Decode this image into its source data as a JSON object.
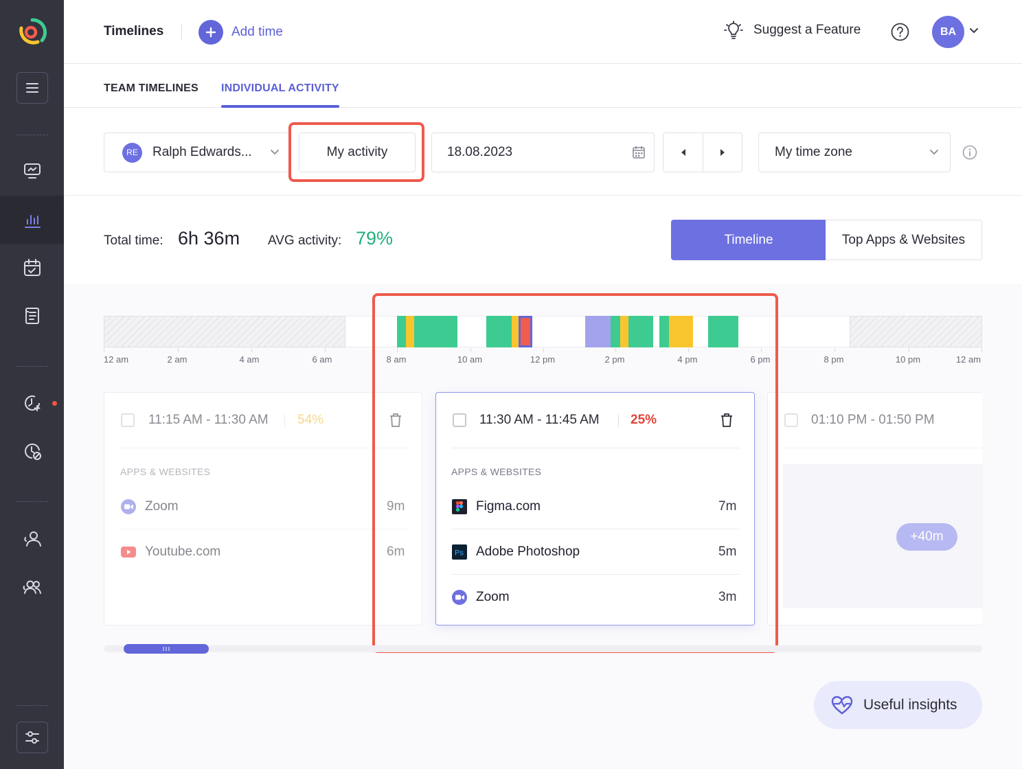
{
  "header": {
    "title": "Timelines",
    "add_time": "Add time",
    "suggest": "Suggest a Feature",
    "avatar": "BA"
  },
  "tabs": [
    {
      "label": "TEAM TIMELINES"
    },
    {
      "label": "INDIVIDUAL ACTIVITY"
    }
  ],
  "filters": {
    "user_initials": "RE",
    "user_name": "Ralph Edwards...",
    "my_activity": "My activity",
    "date": "18.08.2023",
    "timezone": "My time zone"
  },
  "stats": {
    "total_label": "Total time:",
    "total_value": "6h 36m",
    "avg_label": "AVG activity:",
    "avg_value": "79%",
    "view_timeline": "Timeline",
    "view_top_apps": "Top Apps & Websites"
  },
  "timeline": {
    "ticks": [
      "12 am",
      "2 am",
      "4 am",
      "6 am",
      "8 am",
      "10 am",
      "12 pm",
      "2 pm",
      "4 pm",
      "6 pm",
      "8 pm",
      "10 pm",
      "12 am"
    ],
    "colors": {
      "high": "#3ecb91",
      "medium": "#f9c52f",
      "low": "#f25c4c",
      "manual": "#a3a2ec",
      "border": "#6266d9"
    }
  },
  "cards": [
    {
      "time": "11:15 AM - 11:30 AM",
      "activity": "54%",
      "section": "APPS & WEBSITES",
      "apps": [
        {
          "name": "Zoom",
          "duration": "9m",
          "icon": "zoom-icon"
        },
        {
          "name": "Youtube.com",
          "duration": "6m",
          "icon": "youtube-icon"
        }
      ]
    },
    {
      "time": "11:30 AM - 11:45 AM",
      "activity": "25%",
      "section": "APPS & WEBSITES",
      "apps": [
        {
          "name": "Figma.com",
          "duration": "7m",
          "icon": "figma-icon"
        },
        {
          "name": "Adobe Photoshop",
          "duration": "5m",
          "icon": "photoshop-icon"
        },
        {
          "name": "Zoom",
          "duration": "3m",
          "icon": "zoom-icon"
        }
      ]
    },
    {
      "time": "01:10 PM - 01:50 PM",
      "extra": "+40m"
    }
  ],
  "insights": "Useful insights"
}
